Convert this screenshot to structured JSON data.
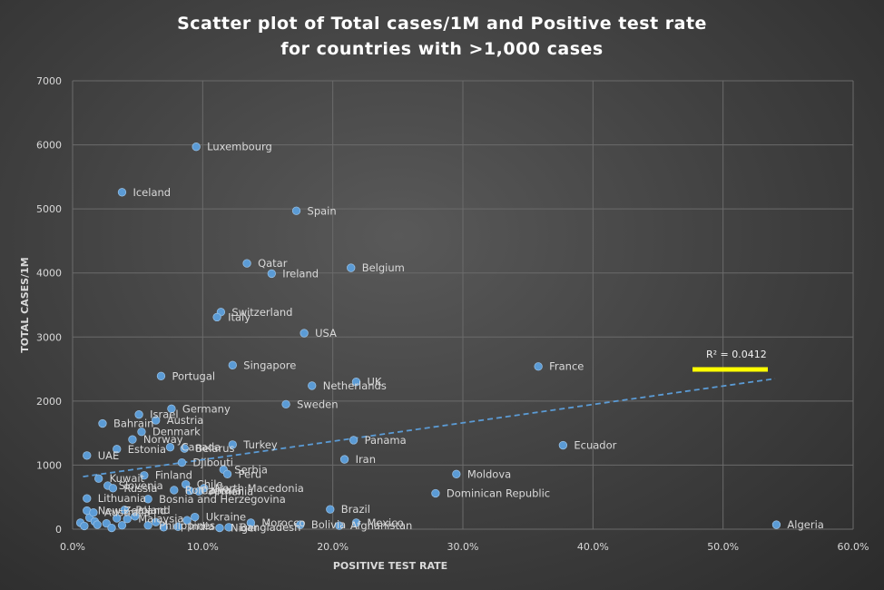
{
  "chart_data": {
    "type": "scatter",
    "title_line1": "Scatter plot of Total cases/1M and Positive test rate",
    "title_line2": "for countries with >1,000 cases",
    "xlabel": "POSITIVE TEST RATE",
    "ylabel": "TOTAL CASES/1M",
    "xlim": [
      0,
      0.6
    ],
    "ylim": [
      0,
      7000
    ],
    "x_ticks": [
      0,
      0.1,
      0.2,
      0.3,
      0.4,
      0.5,
      0.6
    ],
    "x_tick_labels": [
      "0.0%",
      "10.0%",
      "20.0%",
      "30.0%",
      "40.0%",
      "50.0%",
      "60.0%"
    ],
    "y_ticks": [
      0,
      1000,
      2000,
      3000,
      4000,
      5000,
      6000,
      7000
    ],
    "y_tick_labels": [
      "0",
      "1000",
      "2000",
      "3000",
      "4000",
      "5000",
      "6000",
      "7000"
    ],
    "grid": true,
    "trendline": {
      "type": "linear",
      "x": [
        0.008,
        0.54
      ],
      "y": [
        820,
        2350
      ],
      "r2_label": "R² = 0.0412"
    },
    "points": [
      {
        "label": "Luxembourg",
        "x": 0.095,
        "y": 5970
      },
      {
        "label": "Iceland",
        "x": 0.038,
        "y": 5260
      },
      {
        "label": "Spain",
        "x": 0.172,
        "y": 4970
      },
      {
        "label": "Qatar",
        "x": 0.134,
        "y": 4150
      },
      {
        "label": "Ireland",
        "x": 0.153,
        "y": 3990
      },
      {
        "label": "Belgium",
        "x": 0.214,
        "y": 4080
      },
      {
        "label": "Switzerland",
        "x": 0.114,
        "y": 3390
      },
      {
        "label": "Italy",
        "x": 0.111,
        "y": 3310
      },
      {
        "label": "USA",
        "x": 0.178,
        "y": 3060
      },
      {
        "label": "Singapore",
        "x": 0.123,
        "y": 2560
      },
      {
        "label": "Portugal",
        "x": 0.068,
        "y": 2390
      },
      {
        "label": "France",
        "x": 0.358,
        "y": 2540
      },
      {
        "label": "Netherlands",
        "x": 0.184,
        "y": 2240
      },
      {
        "label": "UK",
        "x": 0.218,
        "y": 2300
      },
      {
        "label": "Sweden",
        "x": 0.164,
        "y": 1950
      },
      {
        "label": "Germany",
        "x": 0.076,
        "y": 1880
      },
      {
        "label": "Israel",
        "x": 0.051,
        "y": 1790
      },
      {
        "label": "Austria",
        "x": 0.064,
        "y": 1700
      },
      {
        "label": "Bahrain",
        "x": 0.023,
        "y": 1650
      },
      {
        "label": "Denmark",
        "x": 0.053,
        "y": 1520
      },
      {
        "label": "Norway",
        "x": 0.046,
        "y": 1400
      },
      {
        "label": "Estonia",
        "x": 0.034,
        "y": 1250
      },
      {
        "label": "Canada",
        "x": 0.075,
        "y": 1280
      },
      {
        "label": "Belarus",
        "x": 0.086,
        "y": 1260
      },
      {
        "label": "Turkey",
        "x": 0.123,
        "y": 1320
      },
      {
        "label": "Panama",
        "x": 0.216,
        "y": 1390
      },
      {
        "label": "Ecuador",
        "x": 0.377,
        "y": 1310
      },
      {
        "label": "UAE",
        "x": 0.011,
        "y": 1150
      },
      {
        "label": "Iran",
        "x": 0.209,
        "y": 1090
      },
      {
        "label": "Djibouti",
        "x": 0.084,
        "y": 1040
      },
      {
        "label": "Serbia",
        "x": 0.116,
        "y": 930
      },
      {
        "label": "Peru",
        "x": 0.119,
        "y": 860
      },
      {
        "label": "Kuwait",
        "x": 0.02,
        "y": 790
      },
      {
        "label": "Finland",
        "x": 0.055,
        "y": 840
      },
      {
        "label": "Moldova",
        "x": 0.295,
        "y": 860
      },
      {
        "label": "Chile",
        "x": 0.087,
        "y": 700
      },
      {
        "label": "North Macedonia",
        "x": 0.101,
        "y": 640
      },
      {
        "label": "Slovenia",
        "x": 0.027,
        "y": 680
      },
      {
        "label": "Russia",
        "x": 0.031,
        "y": 640
      },
      {
        "label": "Romania",
        "x": 0.078,
        "y": 610
      },
      {
        "label": "Czechia",
        "x": 0.09,
        "y": 600
      },
      {
        "label": "Armenia",
        "x": 0.097,
        "y": 590
      },
      {
        "label": "Lithuania",
        "x": 0.011,
        "y": 480
      },
      {
        "label": "Bosnia and Herzegovina",
        "x": 0.058,
        "y": 470
      },
      {
        "label": "Dominican Republic",
        "x": 0.279,
        "y": 560
      },
      {
        "label": "Brazil",
        "x": 0.198,
        "y": 310
      },
      {
        "label": "New Zealand",
        "x": 0.011,
        "y": 290
      },
      {
        "label": "Poland",
        "x": 0.04,
        "y": 300
      },
      {
        "label": "Ukraine",
        "x": 0.094,
        "y": 190
      },
      {
        "label": "Australia",
        "x": 0.016,
        "y": 260
      },
      {
        "label": "Malaysia",
        "x": 0.042,
        "y": 160
      },
      {
        "label": "Morocco",
        "x": 0.137,
        "y": 100
      },
      {
        "label": "Mexico",
        "x": 0.218,
        "y": 100
      },
      {
        "label": "Bolivia",
        "x": 0.175,
        "y": 70
      },
      {
        "label": "Afghanistan",
        "x": 0.205,
        "y": 55
      },
      {
        "label": "Philippines",
        "x": 0.058,
        "y": 60
      },
      {
        "label": "India",
        "x": 0.081,
        "y": 40
      },
      {
        "label": "Bangladesh",
        "x": 0.12,
        "y": 30
      },
      {
        "label": "Niger",
        "x": 0.113,
        "y": 20
      },
      {
        "label": "Algeria",
        "x": 0.541,
        "y": 70
      }
    ],
    "extra_points": [
      {
        "x": 0.006,
        "y": 100
      },
      {
        "x": 0.009,
        "y": 50
      },
      {
        "x": 0.013,
        "y": 180
      },
      {
        "x": 0.017,
        "y": 120
      },
      {
        "x": 0.019,
        "y": 70
      },
      {
        "x": 0.026,
        "y": 90
      },
      {
        "x": 0.03,
        "y": 20
      },
      {
        "x": 0.034,
        "y": 170
      },
      {
        "x": 0.038,
        "y": 60
      },
      {
        "x": 0.048,
        "y": 200
      },
      {
        "x": 0.064,
        "y": 110
      },
      {
        "x": 0.07,
        "y": 30
      },
      {
        "x": 0.088,
        "y": 140
      }
    ]
  }
}
